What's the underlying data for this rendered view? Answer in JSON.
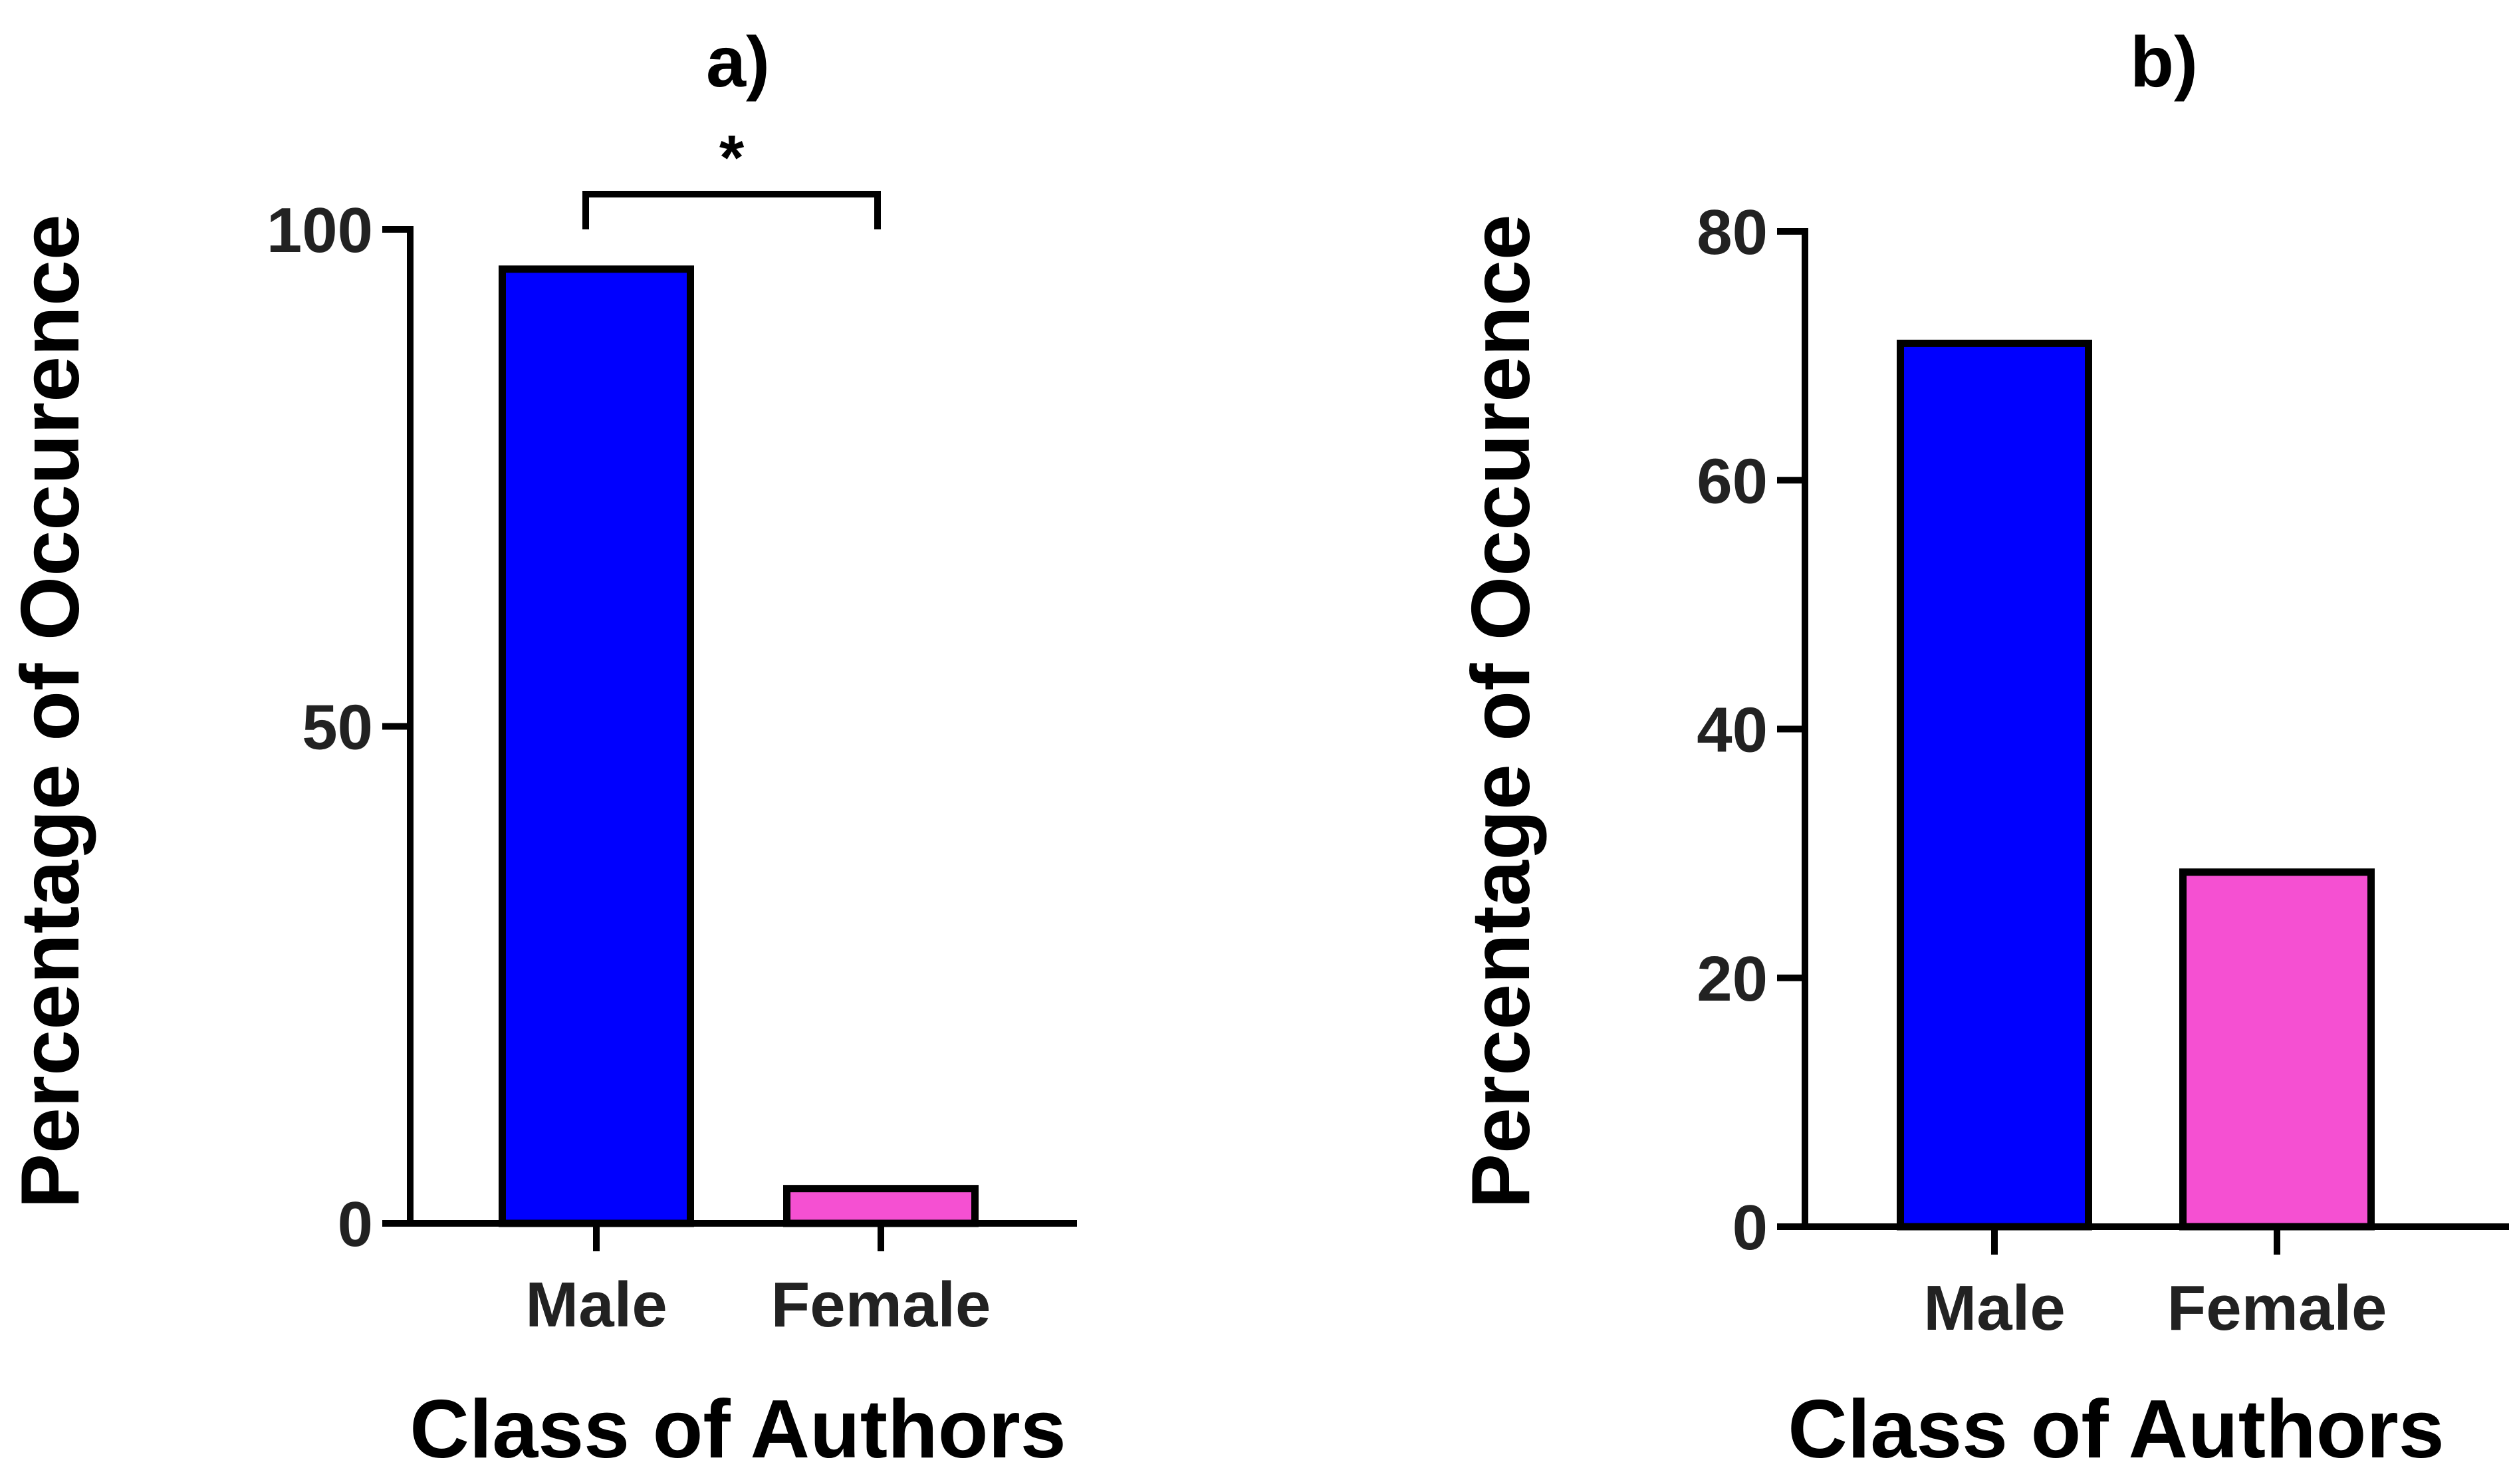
{
  "chart_data": [
    {
      "type": "bar",
      "title": "a)",
      "categories": [
        "Male",
        "Female"
      ],
      "values": [
        96,
        3.5
      ],
      "colors": [
        "#0000ff",
        "#f550d2"
      ],
      "xlabel": "Class of Authors",
      "ylabel": "Percentage of Occurence",
      "ylim": [
        0,
        100
      ],
      "yticks": [
        0,
        50,
        100
      ],
      "grid": false,
      "legend": "none",
      "annotation": {
        "type": "significance-bracket",
        "text": "*",
        "between": [
          "Male",
          "Female"
        ]
      }
    },
    {
      "type": "bar",
      "title": "b)",
      "categories": [
        "Male",
        "Female"
      ],
      "values": [
        71,
        28.5
      ],
      "colors": [
        "#0000ff",
        "#f550d2"
      ],
      "xlabel": "Class of Authors",
      "ylabel": "Percentage of Occurence",
      "ylim": [
        0,
        80
      ],
      "yticks": [
        0,
        20,
        40,
        60,
        80
      ],
      "grid": false,
      "legend": "none"
    }
  ]
}
